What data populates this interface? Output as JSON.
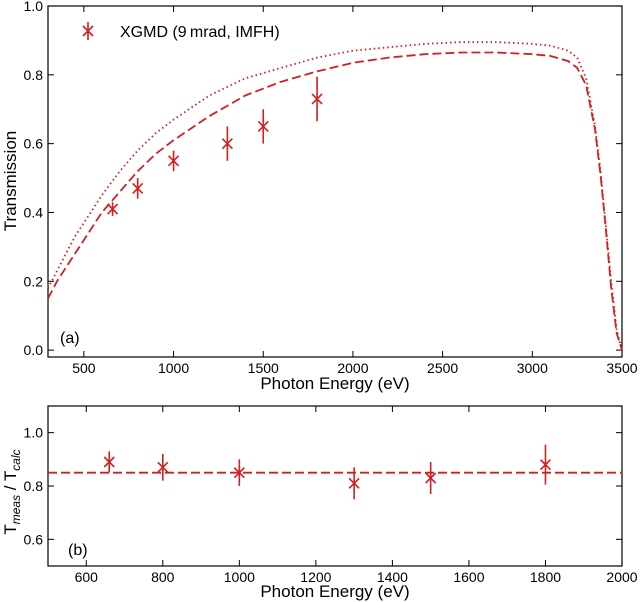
{
  "chart_data": [
    {
      "panel": "a",
      "type": "line",
      "panel_label": "(a)",
      "xlabel": "Photon Energy (eV)",
      "ylabel": "Transmission",
      "xlim": [
        300,
        3500
      ],
      "ylim": [
        -0.02,
        1.0
      ],
      "x_ticks": [
        500,
        1000,
        1500,
        2000,
        2500,
        3000,
        3500
      ],
      "y_ticks": [
        0.0,
        0.2,
        0.4,
        0.6,
        0.8,
        1.0
      ],
      "legend": {
        "label": "XGMD (9 mrad, IMFH)",
        "position": "top-left"
      },
      "series": [
        {
          "name": "dotted",
          "style": "dotted",
          "color": "#d21f1f",
          "x": [
            300,
            350,
            400,
            450,
            500,
            600,
            700,
            800,
            900,
            1000,
            1200,
            1400,
            1600,
            1800,
            2000,
            2200,
            2400,
            2600,
            2800,
            3000,
            3100,
            3200,
            3250,
            3300,
            3350,
            3380,
            3410,
            3440,
            3470,
            3500
          ],
          "y": [
            0.18,
            0.23,
            0.28,
            0.33,
            0.37,
            0.45,
            0.52,
            0.58,
            0.63,
            0.67,
            0.74,
            0.79,
            0.82,
            0.85,
            0.87,
            0.88,
            0.89,
            0.895,
            0.895,
            0.89,
            0.885,
            0.87,
            0.85,
            0.79,
            0.65,
            0.52,
            0.36,
            0.2,
            0.06,
            0.0
          ]
        },
        {
          "name": "dashed",
          "style": "dashed",
          "color": "#d21f1f",
          "x": [
            300,
            350,
            400,
            450,
            500,
            600,
            700,
            800,
            900,
            1000,
            1200,
            1400,
            1600,
            1800,
            2000,
            2200,
            2400,
            2600,
            2800,
            3000,
            3100,
            3200,
            3250,
            3300,
            3350,
            3380,
            3410,
            3440,
            3470,
            3500
          ],
          "y": [
            0.15,
            0.2,
            0.24,
            0.28,
            0.32,
            0.4,
            0.46,
            0.52,
            0.57,
            0.61,
            0.68,
            0.74,
            0.78,
            0.81,
            0.835,
            0.85,
            0.86,
            0.865,
            0.865,
            0.86,
            0.855,
            0.84,
            0.82,
            0.77,
            0.64,
            0.51,
            0.35,
            0.18,
            0.05,
            0.0
          ]
        },
        {
          "name": "XGMD (9 mrad, IMFH)",
          "style": "markers",
          "color": "#d21f1f",
          "x": [
            660,
            800,
            1000,
            1300,
            1500,
            1800
          ],
          "y": [
            0.41,
            0.47,
            0.55,
            0.6,
            0.65,
            0.73
          ],
          "yerr": [
            0.02,
            0.03,
            0.03,
            0.05,
            0.05,
            0.065
          ]
        }
      ]
    },
    {
      "panel": "b",
      "type": "scatter",
      "panel_label": "(b)",
      "xlabel": "Photon Energy (eV)",
      "ylabel": "T",
      "ylabel_parts": {
        "base1": "T",
        "sub1": "meas",
        "sep": " / T",
        "sub2": "calc"
      },
      "xlim": [
        500,
        2000
      ],
      "ylim": [
        0.5,
        1.1
      ],
      "x_ticks": [
        600,
        800,
        1000,
        1200,
        1400,
        1600,
        1800,
        2000
      ],
      "y_ticks": [
        0.6,
        0.8,
        1.0
      ],
      "y_tick_labels": [
        "0.6",
        "0.8",
        "1.0"
      ],
      "reference_line": {
        "y": 0.85,
        "style": "dashed",
        "color": "#d21f1f"
      },
      "series": [
        {
          "name": "ratio",
          "color": "#d21f1f",
          "x": [
            660,
            800,
            1000,
            1300,
            1500,
            1800
          ],
          "y": [
            0.89,
            0.87,
            0.85,
            0.81,
            0.83,
            0.88
          ],
          "yerr": [
            0.04,
            0.05,
            0.05,
            0.06,
            0.06,
            0.075
          ]
        }
      ]
    }
  ]
}
